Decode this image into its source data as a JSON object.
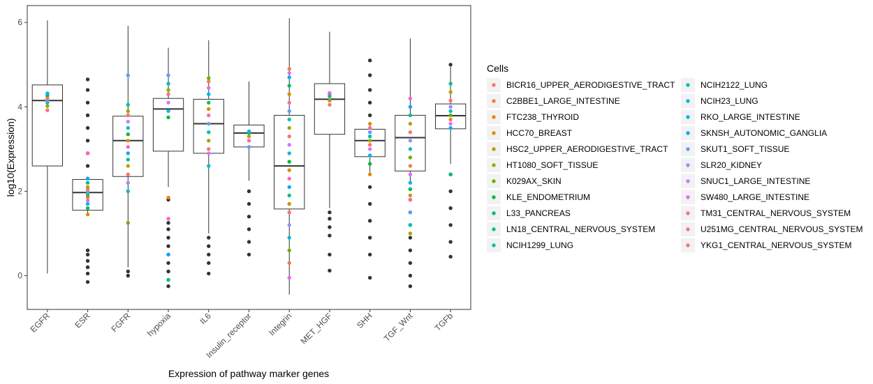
{
  "chart_data": {
    "type": "box",
    "xlabel": "Expression of pathway marker genes",
    "ylabel": "log10(Expression)",
    "ylim": [
      -0.8,
      6.4
    ],
    "yticks": [
      0,
      2,
      4,
      6
    ],
    "grid": false,
    "legend_position": "right",
    "legend_title": "Cells",
    "categories": [
      "EGFR",
      "ESR",
      "FGFR",
      "hypoxia",
      "IL6",
      "Insulin_receptor",
      "Integrin",
      "MET_HGF",
      "SHH",
      "TGF_Wnt",
      "TGFb"
    ],
    "boxes": [
      {
        "category": "EGFR",
        "min": 0.05,
        "q1": 2.6,
        "median": 4.15,
        "q3": 4.52,
        "max": 6.05,
        "outliers": []
      },
      {
        "category": "ESR",
        "min": 1.45,
        "q1": 1.55,
        "median": 1.97,
        "q3": 2.28,
        "max": 2.35,
        "outliers": [
          -0.15,
          0.05,
          0.2,
          0.35,
          0.5,
          0.6,
          2.6,
          2.9,
          3.2,
          3.5,
          3.8,
          4.1,
          4.4,
          4.65
        ]
      },
      {
        "category": "FGFR",
        "min": 0.2,
        "q1": 2.35,
        "median": 3.2,
        "q3": 3.78,
        "max": 5.92,
        "outliers": [
          0.0,
          0.1
        ]
      },
      {
        "category": "hypoxia",
        "min": 2.1,
        "q1": 2.95,
        "median": 3.95,
        "q3": 4.2,
        "max": 5.4,
        "outliers": [
          -0.25,
          -0.1,
          0.1,
          0.3,
          0.5,
          0.7,
          0.9,
          1.1,
          1.25,
          1.8
        ]
      },
      {
        "category": "IL6",
        "min": 1.0,
        "q1": 2.9,
        "median": 3.6,
        "q3": 4.18,
        "max": 5.58,
        "outliers": [
          0.05,
          0.3,
          0.5,
          0.7,
          0.9
        ]
      },
      {
        "category": "Insulin_receptor",
        "min": 2.25,
        "q1": 3.05,
        "median": 3.38,
        "q3": 3.57,
        "max": 4.6,
        "outliers": [
          0.5,
          0.8,
          1.1,
          1.4,
          1.7,
          2.0
        ]
      },
      {
        "category": "Integrin",
        "min": -0.45,
        "q1": 1.58,
        "median": 2.6,
        "q3": 3.8,
        "max": 6.1,
        "outliers": []
      },
      {
        "category": "MET_HGF",
        "min": 1.6,
        "q1": 3.35,
        "median": 4.18,
        "q3": 4.55,
        "max": 5.78,
        "outliers": [
          0.12,
          0.5,
          0.95,
          1.15,
          1.35,
          1.5
        ]
      },
      {
        "category": "SHH",
        "min": 2.4,
        "q1": 2.82,
        "median": 3.2,
        "q3": 3.47,
        "max": 3.62,
        "outliers": [
          -0.05,
          0.5,
          0.9,
          1.3,
          1.7,
          2.1,
          3.8,
          4.1,
          4.4,
          4.75,
          5.1
        ]
      },
      {
        "category": "TGF_Wnt",
        "min": 2.2,
        "q1": 2.48,
        "median": 3.27,
        "q3": 3.8,
        "max": 5.62,
        "outliers": [
          -0.25,
          0.0,
          0.3,
          0.6,
          0.9,
          1.2,
          1.5,
          1.8,
          2.05
        ]
      },
      {
        "category": "TGFb",
        "min": 2.65,
        "q1": 3.48,
        "median": 3.79,
        "q3": 4.07,
        "max": 4.95,
        "outliers": [
          0.45,
          0.8,
          1.2,
          1.6,
          2.0,
          2.4,
          5.0
        ]
      }
    ],
    "cell_points": [
      {
        "category": "EGFR",
        "values": [
          3.92,
          4.02,
          4.1,
          4.15,
          4.2,
          4.25,
          4.28,
          4.32
        ]
      },
      {
        "category": "ESR",
        "values": [
          1.45,
          1.6,
          1.7,
          1.78,
          1.85,
          1.9,
          1.95,
          2.0,
          2.05,
          2.1,
          2.2,
          2.3,
          2.9
        ]
      },
      {
        "category": "FGFR",
        "values": [
          1.25,
          2.0,
          2.2,
          2.4,
          2.6,
          2.75,
          2.9,
          3.05,
          3.2,
          3.35,
          3.5,
          3.65,
          3.8,
          3.9,
          4.05,
          4.75
        ]
      },
      {
        "category": "hypoxia",
        "values": [
          -0.1,
          0.5,
          1.35,
          1.85,
          3.75,
          3.9,
          4.1,
          4.3,
          4.4,
          4.55,
          4.75
        ]
      },
      {
        "category": "IL6",
        "values": [
          2.6,
          2.9,
          3.0,
          3.2,
          3.4,
          3.6,
          3.8,
          3.95,
          4.1,
          4.3,
          4.45,
          4.6,
          4.68
        ]
      },
      {
        "category": "Insulin_receptor",
        "values": [
          3.05,
          3.2,
          3.3,
          3.38,
          3.42
        ]
      },
      {
        "category": "Integrin",
        "values": [
          -0.05,
          0.3,
          0.6,
          0.9,
          1.2,
          1.5,
          1.7,
          1.9,
          2.1,
          2.3,
          2.5,
          2.7,
          2.9,
          3.1,
          3.3,
          3.5,
          3.7,
          3.9,
          4.1,
          4.3,
          4.5,
          4.7,
          4.8,
          4.9
        ]
      },
      {
        "category": "MET_HGF",
        "values": [
          4.05,
          4.15,
          4.25,
          4.3,
          4.33
        ]
      },
      {
        "category": "SHH",
        "values": [
          2.4,
          2.65,
          2.85,
          3.0,
          3.1,
          3.2,
          3.3,
          3.4,
          3.5,
          3.6
        ]
      },
      {
        "category": "TGF_Wnt",
        "values": [
          1.0,
          1.2,
          1.5,
          1.8,
          1.9,
          2.05,
          2.2,
          2.4,
          2.6,
          2.8,
          3.0,
          3.2,
          3.4,
          3.6,
          3.8,
          4.0,
          4.2
        ]
      },
      {
        "category": "TGFb",
        "values": [
          2.4,
          3.5,
          3.6,
          3.7,
          3.8,
          3.9,
          4.0,
          4.15,
          4.35,
          4.55
        ]
      }
    ],
    "series": [
      {
        "name": "BICR16_UPPER_AERODIGESTIVE_TRACT",
        "color": "#F8766D"
      },
      {
        "name": "C2BBE1_LARGE_INTESTINE",
        "color": "#EF7F47"
      },
      {
        "name": "FTC238_THYROID",
        "color": "#E38900"
      },
      {
        "name": "HCC70_BREAST",
        "color": "#D19400"
      },
      {
        "name": "HSC2_UPPER_AERODIGESTIVE_TRACT",
        "color": "#B79F00"
      },
      {
        "name": "HT1080_SOFT_TISSUE",
        "color": "#9AA800"
      },
      {
        "name": "K029AX_SKIN",
        "color": "#6BB100"
      },
      {
        "name": "KLE_ENDOMETRIUM",
        "color": "#00BA38"
      },
      {
        "name": "L33_PANCREAS",
        "color": "#00BE67"
      },
      {
        "name": "LN18_CENTRAL_NERVOUS_SYSTEM",
        "color": "#00C08B"
      },
      {
        "name": "NCIH1299_LUNG",
        "color": "#00C0AB"
      },
      {
        "name": "NCIH2122_LUNG",
        "color": "#00BFC4"
      },
      {
        "name": "NCIH23_LUNG",
        "color": "#00BBDB"
      },
      {
        "name": "RKO_LARGE_INTESTINE",
        "color": "#00B4EF"
      },
      {
        "name": "SKNSH_AUTONOMIC_GANGLIA",
        "color": "#00A9FF"
      },
      {
        "name": "SKUT1_SOFT_TISSUE",
        "color": "#619CFF"
      },
      {
        "name": "SLR20_KIDNEY",
        "color": "#9590FF"
      },
      {
        "name": "SNUC1_LARGE_INTESTINE",
        "color": "#D575FE"
      },
      {
        "name": "SW480_LARGE_INTESTINE",
        "color": "#E76BF3"
      },
      {
        "name": "TM31_CENTRAL_NERVOUS_SYSTEM",
        "color": "#FF62BC"
      },
      {
        "name": "U251MG_CENTRAL_NERVOUS_SYSTEM",
        "color": "#FD6B9E"
      },
      {
        "name": "YKG1_CENTRAL_NERVOUS_SYSTEM",
        "color": "#F8766D"
      }
    ]
  }
}
